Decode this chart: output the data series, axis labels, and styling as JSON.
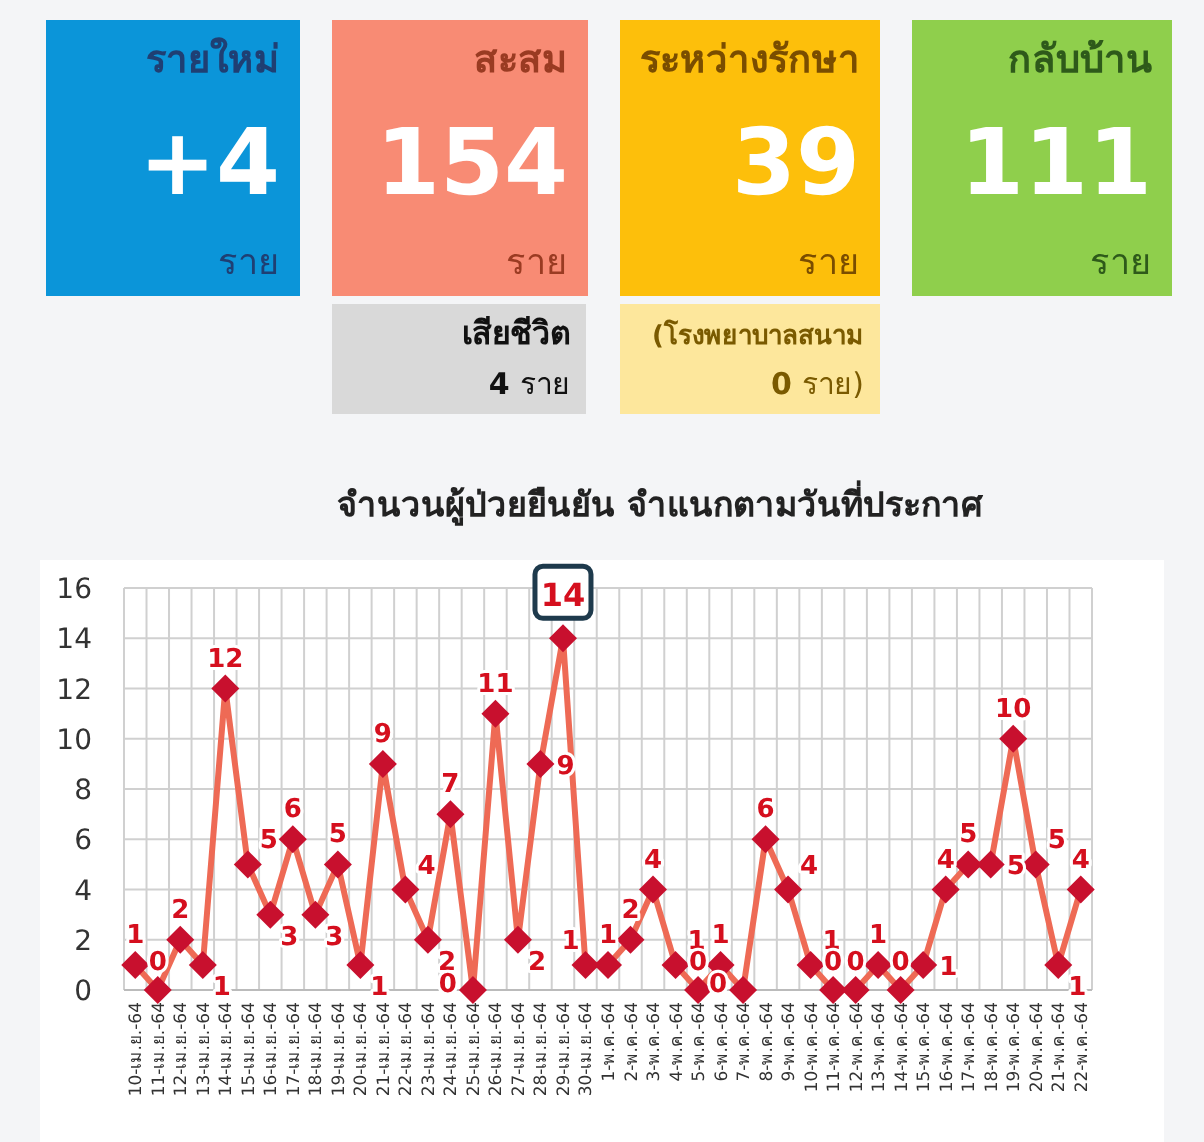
{
  "chart_data": [
    {
      "type": "other",
      "categories": [
        "รายใหม่",
        "สะสม",
        "ระหว่างรักษา",
        "กลับบ้าน",
        "เสียชีวิต",
        "(โรงพยาบาลสนาม"
      ],
      "value_labels": [
        "+4",
        "154",
        "39",
        "111",
        "4",
        "0"
      ],
      "colors": [
        "#0b95d9",
        "#f88b74",
        "#fdbf0b",
        "#8fcf4c",
        "#d9d9d9",
        "#fde79c"
      ],
      "annotations": [
        "ราย",
        "ราย",
        "ราย",
        "ราย",
        "ราย",
        "ราย)"
      ]
    },
    {
      "type": "line",
      "title": "จำนวนผู้ป่วยยืนยัน จำแนกตามวันที่ประกาศ",
      "categories": [
        "10-เม.ย.-64",
        "11-เม.ย.-64",
        "12-เม.ย.-64",
        "13-เม.ย.-64",
        "14-เม.ย.-64",
        "15-เม.ย.-64",
        "16-เม.ย.-64",
        "17-เม.ย.-64",
        "18-เม.ย.-64",
        "19-เม.ย.-64",
        "20-เม.ย.-64",
        "21-เม.ย.-64",
        "22-เม.ย.-64",
        "23-เม.ย.-64",
        "24-เม.ย.-64",
        "25-เม.ย.-64",
        "26-เม.ย.-64",
        "27-เม.ย.-64",
        "28-เม.ย.-64",
        "29-เม.ย.-64",
        "30-เม.ย.-64",
        "1-พ.ค.-64",
        "2-พ.ค.-64",
        "3-พ.ค.-64",
        "4-พ.ค.-64",
        "5-พ.ค.-64",
        "6-พ.ค.-64",
        "7-พ.ค.-64",
        "8-พ.ค.-64",
        "9-พ.ค.-64",
        "10-พ.ค.-64",
        "11-พ.ค.-64",
        "12-พ.ค.-64",
        "13-พ.ค.-64",
        "14-พ.ค.-64",
        "15-พ.ค.-64",
        "16-พ.ค.-64",
        "17-พ.ค.-64",
        "18-พ.ค.-64",
        "19-พ.ค.-64",
        "20-พ.ค.-64",
        "21-พ.ค.-64",
        "22-พ.ค.-64"
      ],
      "series": [
        {
          "color": "#ee6a55",
          "values": [
            1,
            0,
            2,
            1,
            12,
            5,
            3,
            6,
            3,
            5,
            1,
            9,
            4,
            2,
            7,
            0,
            11,
            2,
            9,
            14,
            1,
            1,
            2,
            4,
            1,
            0,
            1,
            0,
            6,
            4,
            1,
            0,
            0,
            1,
            0,
            1,
            4,
            5,
            5,
            10,
            5,
            1,
            4
          ],
          "value_labels": [
            "1",
            "0",
            "2",
            "1",
            "12",
            "5",
            "3",
            "6",
            "3",
            "5",
            "1",
            "9",
            "4",
            "2",
            "7",
            "0",
            "11",
            "2",
            "9",
            null,
            "1",
            "1",
            "2",
            "4",
            "1",
            "0",
            "1",
            "0",
            "6",
            "4",
            "1",
            "0",
            "0",
            "1",
            "0",
            "1",
            "4",
            "5",
            "5",
            "10",
            "5",
            "1",
            "4"
          ]
        }
      ],
      "marker": "diamond",
      "ylim": [
        0,
        16
      ],
      "yticks": [
        0,
        2,
        4,
        6,
        8,
        10,
        12,
        14,
        16
      ],
      "grid": true,
      "annotations": [
        {
          "text": "14",
          "x": "29-เม.ย.-64",
          "y": 14
        }
      ]
    }
  ]
}
